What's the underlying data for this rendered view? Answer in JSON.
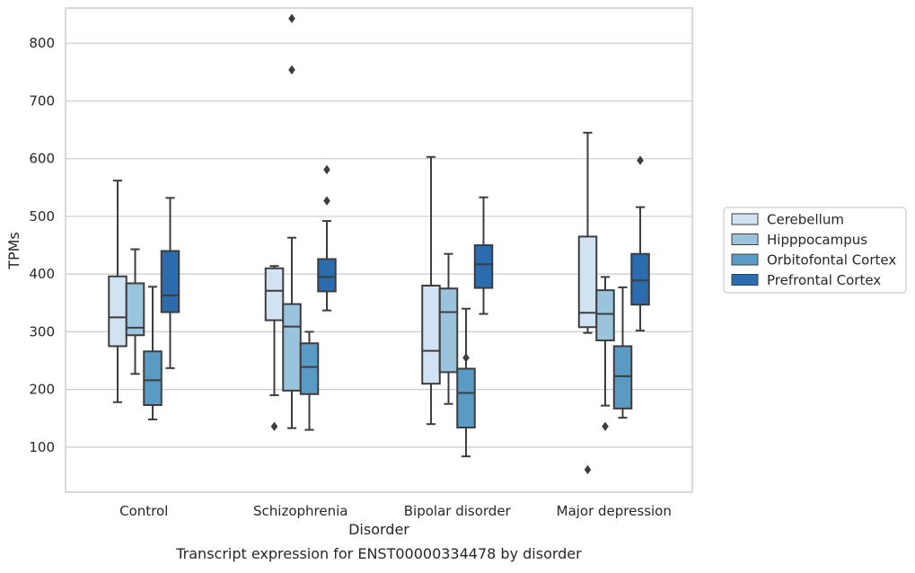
{
  "chart_data": {
    "type": "boxplot",
    "title": "",
    "caption": "Transcript expression for ENST00000334478 by disorder",
    "xlabel": "Disorder",
    "ylabel": "TPMs",
    "ylim": [
      22,
      861
    ],
    "yticks": [
      100,
      200,
      300,
      400,
      500,
      600,
      700,
      800
    ],
    "grid": "horizontal",
    "legend_placement": "right-outside",
    "categories": [
      "Control",
      "Schizophrenia",
      "Bipolar disorder",
      "Major depression"
    ],
    "series": [
      {
        "name": "Cerebellum",
        "color": "#d1e2f2",
        "boxes": [
          {
            "whislo": 178,
            "q1": 275,
            "med": 325,
            "q3": 396,
            "whishi": 562,
            "fliers": []
          },
          {
            "whislo": 190,
            "q1": 320,
            "med": 371,
            "q3": 410,
            "whishi": 414,
            "fliers": [
              136
            ]
          },
          {
            "whislo": 140,
            "q1": 210,
            "med": 267,
            "q3": 380,
            "whishi": 603,
            "fliers": []
          },
          {
            "whislo": 298,
            "q1": 308,
            "med": 333,
            "q3": 465,
            "whishi": 645,
            "fliers": [
              61
            ]
          }
        ]
      },
      {
        "name": "Hipppocampus",
        "color": "#9ac3dd",
        "boxes": [
          {
            "whislo": 227,
            "q1": 294,
            "med": 307,
            "q3": 384,
            "whishi": 443,
            "fliers": []
          },
          {
            "whislo": 133,
            "q1": 198,
            "med": 309,
            "q3": 348,
            "whishi": 463,
            "fliers": [
              843,
              754
            ]
          },
          {
            "whislo": 175,
            "q1": 230,
            "med": 334,
            "q3": 375,
            "whishi": 435,
            "fliers": []
          },
          {
            "whislo": 172,
            "q1": 285,
            "med": 331,
            "q3": 372,
            "whishi": 395,
            "fliers": [
              136
            ]
          }
        ]
      },
      {
        "name": "Orbitofontal Cortex",
        "color": "#5a9bc6",
        "boxes": [
          {
            "whislo": 148,
            "q1": 173,
            "med": 216,
            "q3": 266,
            "whishi": 378,
            "fliers": []
          },
          {
            "whislo": 130,
            "q1": 192,
            "med": 239,
            "q3": 280,
            "whishi": 300,
            "fliers": []
          },
          {
            "whislo": 84,
            "q1": 134,
            "med": 194,
            "q3": 236,
            "whishi": 340,
            "fliers": [
              255
            ]
          },
          {
            "whislo": 151,
            "q1": 167,
            "med": 223,
            "q3": 275,
            "whishi": 377,
            "fliers": []
          }
        ]
      },
      {
        "name": "Prefrontal Cortex",
        "color": "#2a6cad",
        "boxes": [
          {
            "whislo": 237,
            "q1": 334,
            "med": 363,
            "q3": 440,
            "whishi": 532,
            "fliers": []
          },
          {
            "whislo": 337,
            "q1": 370,
            "med": 395,
            "q3": 426,
            "whishi": 492,
            "fliers": [
              581,
              527
            ]
          },
          {
            "whislo": 331,
            "q1": 376,
            "med": 417,
            "q3": 450,
            "whishi": 533,
            "fliers": []
          },
          {
            "whislo": 302,
            "q1": 347,
            "med": 389,
            "q3": 435,
            "whishi": 516,
            "fliers": [
              597
            ]
          }
        ]
      }
    ]
  }
}
